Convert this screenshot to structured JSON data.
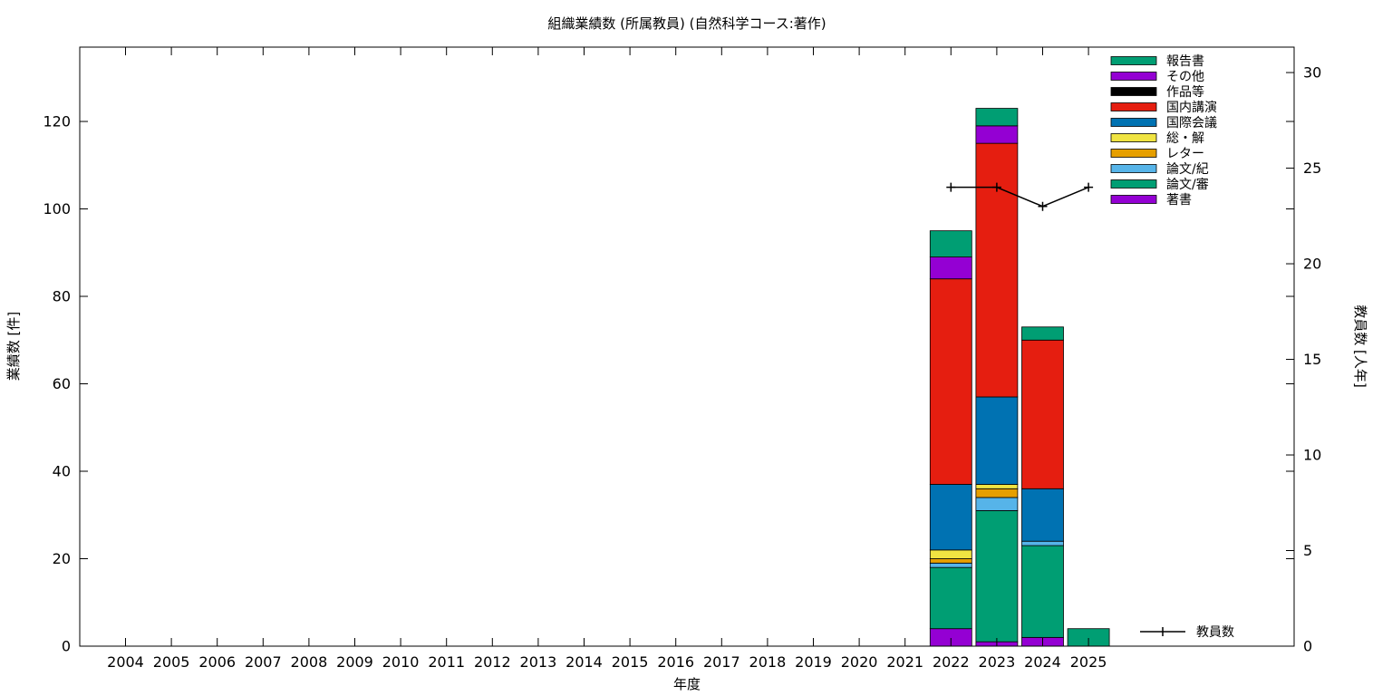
{
  "chart_data": {
    "type": "bar",
    "stacked": true,
    "title": "組織業績数 (所属教員) (自然科学コース:著作)",
    "xlabel": "年度",
    "ylabel": "業績数 [件]",
    "y2label": "教員数 [人年]",
    "categories": [
      "2004",
      "2005",
      "2006",
      "2007",
      "2008",
      "2009",
      "2010",
      "2011",
      "2012",
      "2013",
      "2014",
      "2015",
      "2016",
      "2017",
      "2018",
      "2019",
      "2020",
      "2021",
      "2022",
      "2023",
      "2024",
      "2025"
    ],
    "ylim": [
      0,
      137
    ],
    "yticks": [
      0,
      20,
      40,
      60,
      80,
      100,
      120
    ],
    "y2lim": [
      0,
      31.33
    ],
    "y2ticks": [
      0,
      5,
      10,
      15,
      20,
      25,
      30
    ],
    "grid": false,
    "legend_position": "top-right",
    "series": [
      {
        "name": "著書",
        "color": "#9400d3",
        "values": [
          0,
          0,
          0,
          0,
          0,
          0,
          0,
          0,
          0,
          0,
          0,
          0,
          0,
          0,
          0,
          0,
          0,
          0,
          4,
          1,
          2,
          0
        ]
      },
      {
        "name": "論文/審",
        "color": "#009e73",
        "values": [
          0,
          0,
          0,
          0,
          0,
          0,
          0,
          0,
          0,
          0,
          0,
          0,
          0,
          0,
          0,
          0,
          0,
          0,
          14,
          30,
          21,
          4
        ]
      },
      {
        "name": "論文/紀",
        "color": "#56b4e9",
        "values": [
          0,
          0,
          0,
          0,
          0,
          0,
          0,
          0,
          0,
          0,
          0,
          0,
          0,
          0,
          0,
          0,
          0,
          0,
          1,
          3,
          1,
          0
        ]
      },
      {
        "name": "レター",
        "color": "#e69f00",
        "values": [
          0,
          0,
          0,
          0,
          0,
          0,
          0,
          0,
          0,
          0,
          0,
          0,
          0,
          0,
          0,
          0,
          0,
          0,
          1,
          2,
          0,
          0
        ]
      },
      {
        "name": "総・解",
        "color": "#f0e442",
        "values": [
          0,
          0,
          0,
          0,
          0,
          0,
          0,
          0,
          0,
          0,
          0,
          0,
          0,
          0,
          0,
          0,
          0,
          0,
          2,
          1,
          0,
          0
        ]
      },
      {
        "name": "国際会議",
        "color": "#0072b2",
        "values": [
          0,
          0,
          0,
          0,
          0,
          0,
          0,
          0,
          0,
          0,
          0,
          0,
          0,
          0,
          0,
          0,
          0,
          0,
          15,
          20,
          12,
          0
        ]
      },
      {
        "name": "国内講演",
        "color": "#e51e10",
        "values": [
          0,
          0,
          0,
          0,
          0,
          0,
          0,
          0,
          0,
          0,
          0,
          0,
          0,
          0,
          0,
          0,
          0,
          0,
          47,
          58,
          34,
          0
        ]
      },
      {
        "name": "作品等",
        "color": "#000000",
        "values": [
          0,
          0,
          0,
          0,
          0,
          0,
          0,
          0,
          0,
          0,
          0,
          0,
          0,
          0,
          0,
          0,
          0,
          0,
          0,
          0,
          0,
          0
        ]
      },
      {
        "name": "その他",
        "color": "#9400d3",
        "values": [
          0,
          0,
          0,
          0,
          0,
          0,
          0,
          0,
          0,
          0,
          0,
          0,
          0,
          0,
          0,
          0,
          0,
          0,
          5,
          4,
          0,
          0
        ]
      },
      {
        "name": "報告書",
        "color": "#009e73",
        "values": [
          0,
          0,
          0,
          0,
          0,
          0,
          0,
          0,
          0,
          0,
          0,
          0,
          0,
          0,
          0,
          0,
          0,
          0,
          6,
          4,
          3,
          0
        ]
      }
    ],
    "line_series": {
      "name": "教員数",
      "axis": "y2",
      "color": "#000000",
      "categories": [
        "2022",
        "2023",
        "2024",
        "2025"
      ],
      "values": [
        24,
        24,
        23,
        24
      ]
    }
  }
}
